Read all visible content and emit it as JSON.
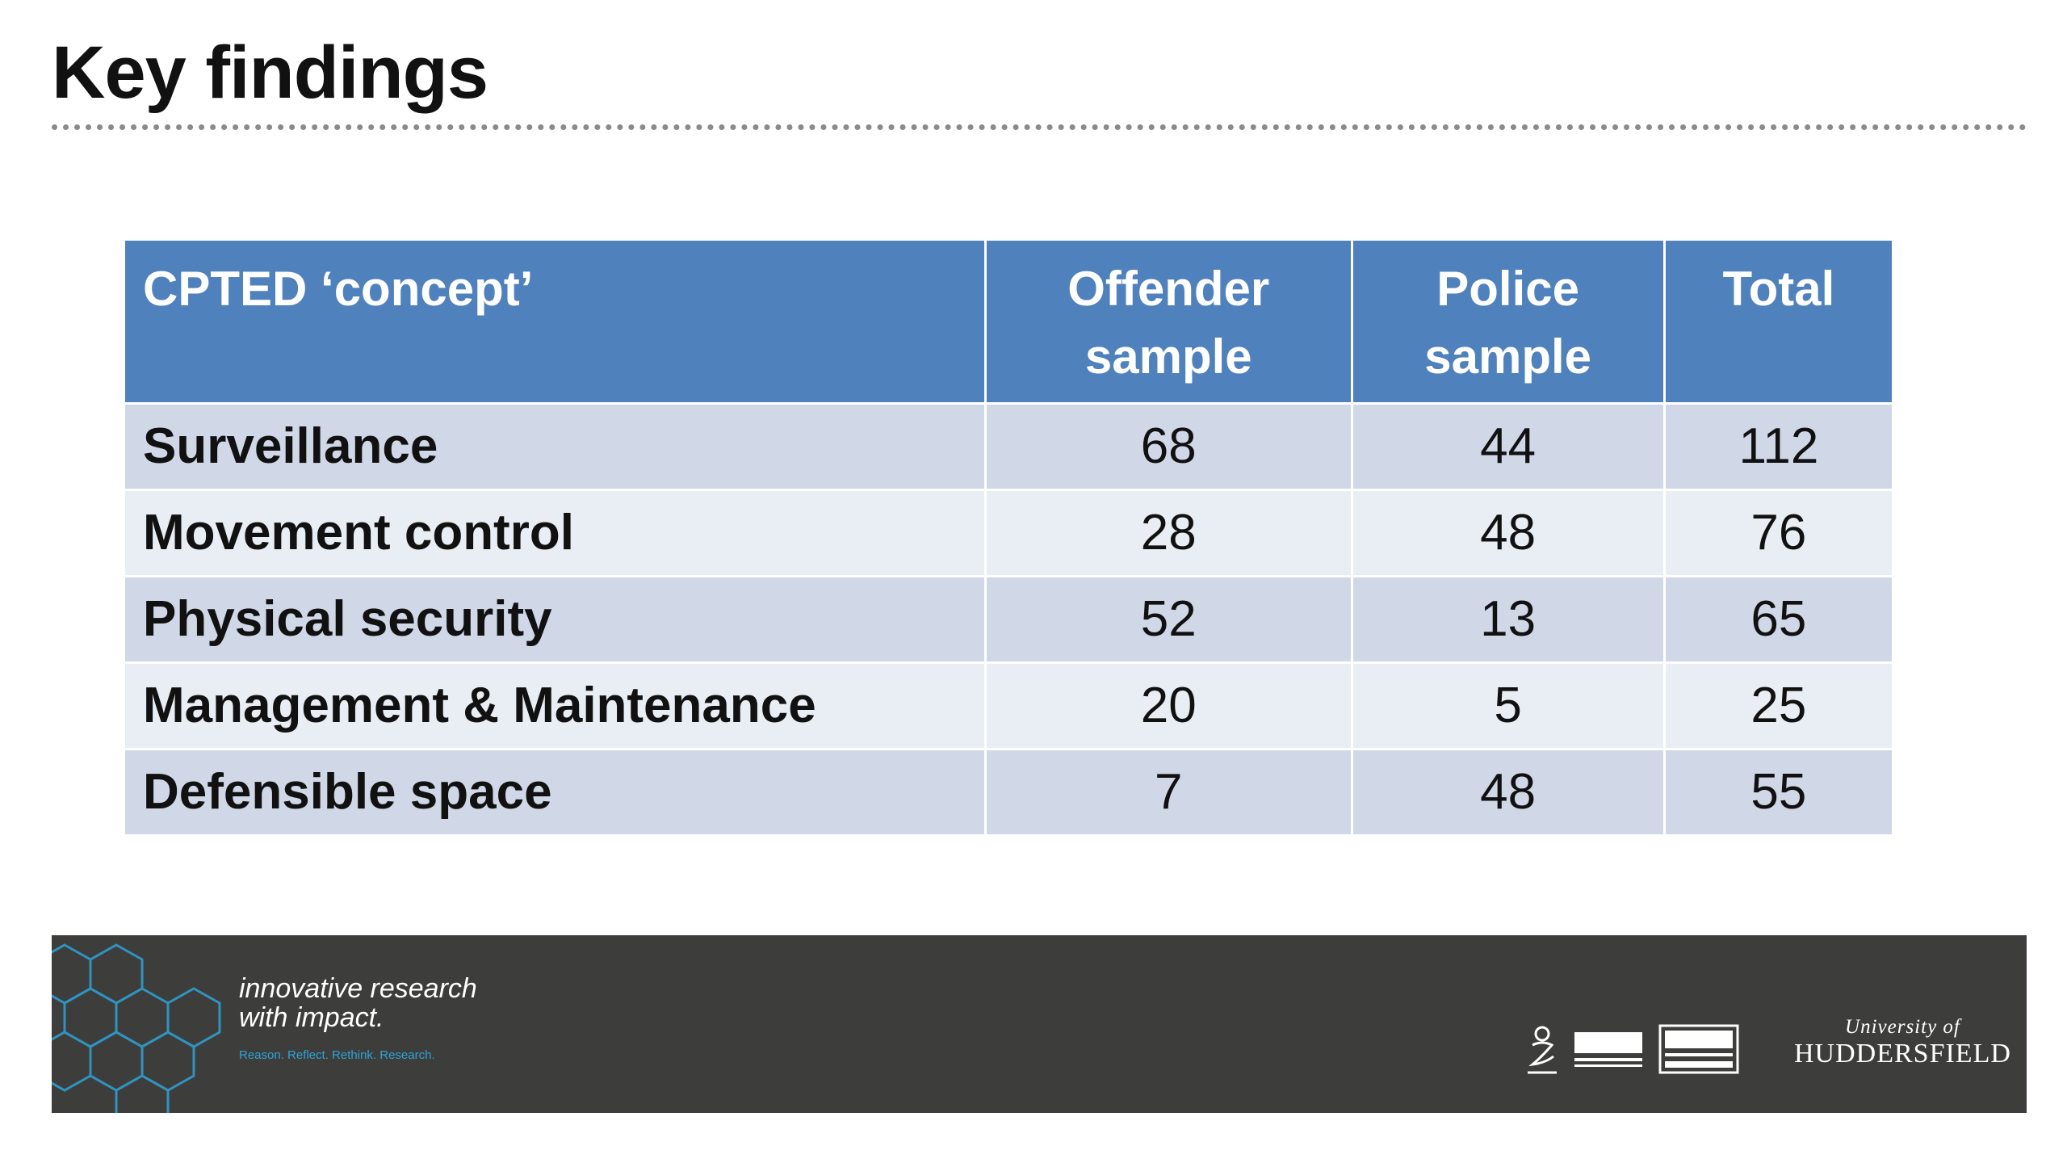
{
  "slide": {
    "title": "Key findings"
  },
  "table": {
    "headers": [
      {
        "line1": "CPTED ‘concept’",
        "line2": ""
      },
      {
        "line1": "Offender",
        "line2": "sample"
      },
      {
        "line1": "Police",
        "line2": "sample"
      },
      {
        "line1": "Total",
        "line2": ""
      }
    ],
    "rows": [
      {
        "concept": "Surveillance",
        "offender": "68",
        "police": "44",
        "total": "112"
      },
      {
        "concept": "Movement control",
        "offender": "28",
        "police": "48",
        "total": "76"
      },
      {
        "concept": "Physical security",
        "offender": "52",
        "police": "13",
        "total": "65"
      },
      {
        "concept": "Management & Maintenance",
        "offender": "20",
        "police": "5",
        "total": "25"
      },
      {
        "concept": "Defensible space",
        "offender": "7",
        "police": "48",
        "total": "55"
      }
    ]
  },
  "footer": {
    "tagline_line1": "innovative research",
    "tagline_line2": "with impact.",
    "subtagline": "Reason. Reflect. Rethink. Research.",
    "university_of": "University of",
    "university_name": "HUDDERSFIELD",
    "award_logos": [
      "queens-award-icon",
      "the-awards-logo",
      "stars-logo"
    ]
  },
  "colors": {
    "header_blue": "#4f81bd",
    "row_dark": "#d0d8e8",
    "row_light": "#e9edf4",
    "footer_bg": "#3d3d3b",
    "hex_accent": "#2ea3d8"
  }
}
